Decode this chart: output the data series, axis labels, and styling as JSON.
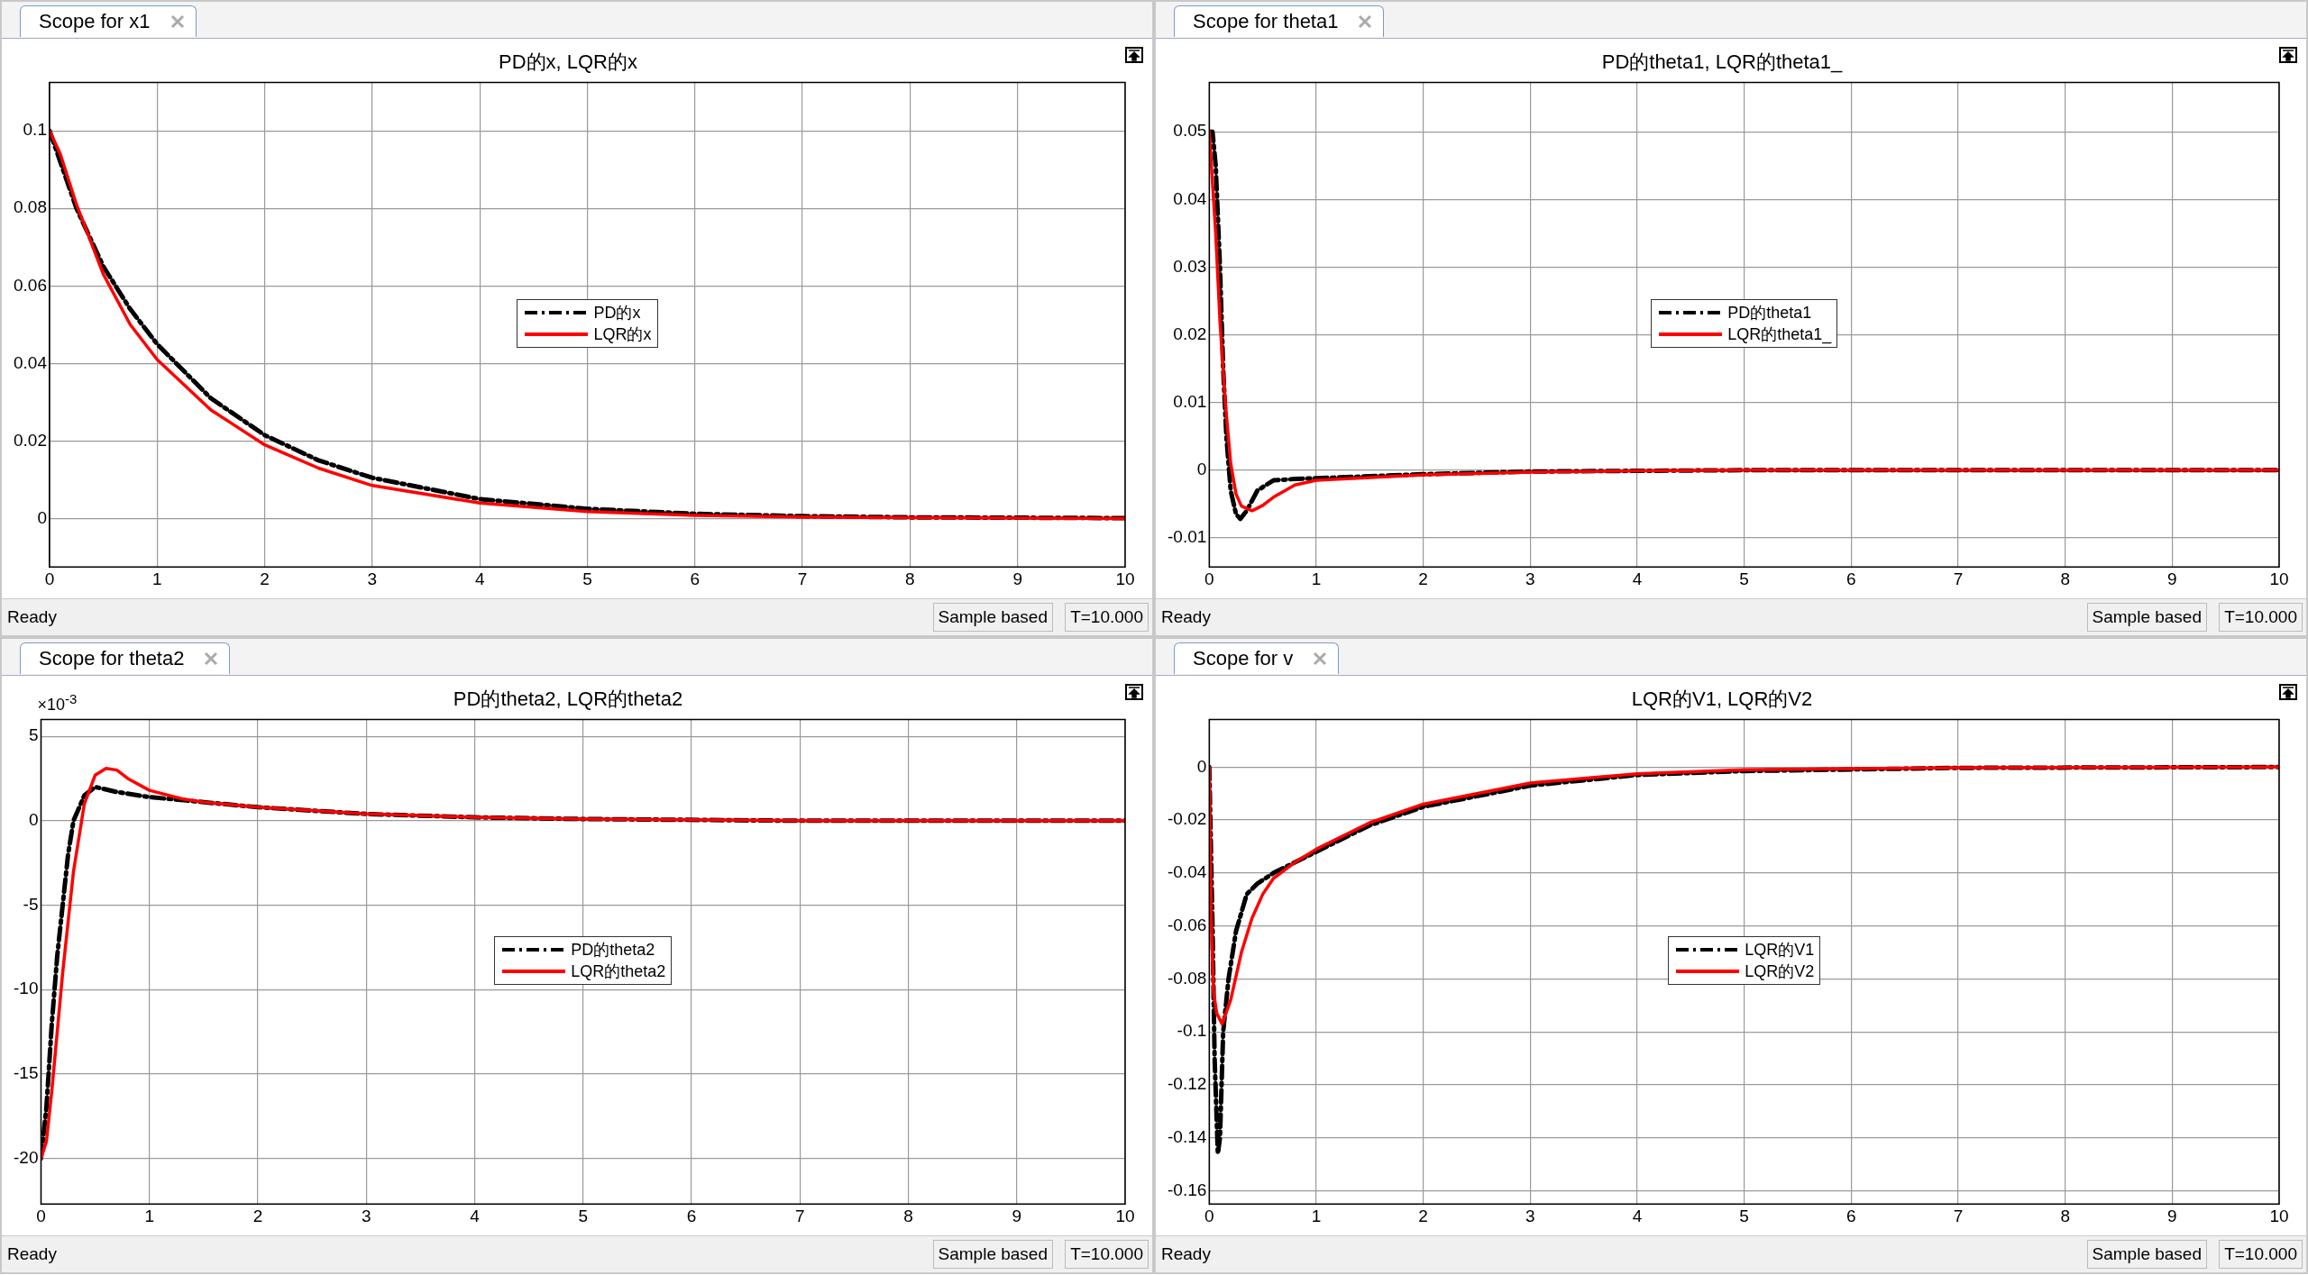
{
  "chart_data": [
    {
      "type": "line",
      "title": "PD的x, LQR的x",
      "annotations": [
        "Scope for x1",
        "Ready",
        "Sample based",
        "T=10.000"
      ],
      "xlim": [
        0,
        10
      ],
      "xticks": [
        0,
        1,
        2,
        3,
        4,
        5,
        6,
        7,
        8,
        9,
        10
      ],
      "ylim": [
        -0.0125,
        0.1125
      ],
      "yticks": [
        0,
        0.02,
        0.04,
        0.06,
        0.08,
        0.1
      ],
      "grid": true,
      "legend": "center",
      "marker": "none",
      "series": [
        {
          "name": "PD的x",
          "color": "#000000",
          "line_style": "dashed",
          "x": [
            0,
            0.1,
            0.25,
            0.5,
            0.75,
            1,
            1.5,
            2,
            2.5,
            3,
            4,
            5,
            6,
            7,
            8,
            10
          ],
          "values": [
            0.1,
            0.092,
            0.08,
            0.065,
            0.054,
            0.045,
            0.031,
            0.0215,
            0.015,
            0.0105,
            0.005,
            0.0025,
            0.0012,
            0.0006,
            0.0003,
            0.0001
          ]
        },
        {
          "name": "LQR的x",
          "color": "#ff0000",
          "line_style": "solid",
          "x": [
            0,
            0.1,
            0.25,
            0.5,
            0.75,
            1,
            1.5,
            2,
            2.5,
            3,
            4,
            5,
            6,
            7,
            8,
            10
          ],
          "values": [
            0.1,
            0.094,
            0.081,
            0.063,
            0.05,
            0.041,
            0.028,
            0.019,
            0.013,
            0.0085,
            0.004,
            0.0018,
            0.0008,
            0.0004,
            0.0002,
            0
          ]
        }
      ]
    },
    {
      "type": "line",
      "title": "PD的theta1, LQR的theta1_",
      "annotations": [
        "Scope for theta1",
        "Ready",
        "Sample based",
        "T=10.000"
      ],
      "xlim": [
        0,
        10
      ],
      "xticks": [
        0,
        1,
        2,
        3,
        4,
        5,
        6,
        7,
        8,
        9,
        10
      ],
      "ylim": [
        -0.0143,
        0.0573
      ],
      "yticks": [
        -0.01,
        0,
        0.01,
        0.02,
        0.03,
        0.04,
        0.05
      ],
      "grid": true,
      "legend": "center",
      "marker": "none",
      "series": [
        {
          "name": "PD的theta1",
          "color": "#000000",
          "line_style": "dashed",
          "x": [
            0,
            0.03,
            0.06,
            0.1,
            0.13,
            0.16,
            0.2,
            0.25,
            0.29,
            0.35,
            0.45,
            0.6,
            0.8,
            1,
            2,
            3,
            5,
            10
          ],
          "values": [
            0.05,
            0.05,
            0.045,
            0.03,
            0.015,
            0.005,
            -0.003,
            -0.0065,
            -0.0072,
            -0.006,
            -0.003,
            -0.0015,
            -0.0013,
            -0.0012,
            -0.0006,
            -0.0002,
            0,
            0
          ]
        },
        {
          "name": "LQR的theta1_",
          "color": "#ff0000",
          "line_style": "solid",
          "x": [
            0,
            0.02,
            0.06,
            0.1,
            0.15,
            0.2,
            0.25,
            0.3,
            0.4,
            0.5,
            0.6,
            0.8,
            1,
            1.5,
            2,
            3,
            4,
            5,
            10
          ],
          "values": [
            0.05,
            0.045,
            0.035,
            0.022,
            0.01,
            0.001,
            -0.0035,
            -0.0053,
            -0.006,
            -0.0052,
            -0.004,
            -0.0022,
            -0.0015,
            -0.0011,
            -0.0007,
            -0.0003,
            -0.0001,
            0,
            0
          ]
        }
      ]
    },
    {
      "type": "line",
      "title": "PD的theta2, LQR的theta2",
      "annotations": [
        "Scope for theta2",
        "Ready",
        "Sample based",
        "T=10.000",
        "×10$^{-3}$"
      ],
      "xlim": [
        0,
        10
      ],
      "xticks": [
        0,
        1,
        2,
        3,
        4,
        5,
        6,
        7,
        8,
        9,
        10
      ],
      "ylim": [
        -22.7,
        6
      ],
      "yticks": [
        -20,
        -15,
        -10,
        -5,
        0,
        5
      ],
      "grid": true,
      "legend": "center",
      "marker": "none",
      "series": [
        {
          "name": "PD的theta2",
          "color": "#000000",
          "line_style": "dashed",
          "x": [
            0,
            0.05,
            0.1,
            0.15,
            0.2,
            0.25,
            0.3,
            0.4,
            0.5,
            0.7,
            1,
            1.5,
            2,
            3,
            4,
            5,
            7,
            10
          ],
          "values": [
            -20,
            -17,
            -12,
            -8,
            -5,
            -2,
            0,
            1.5,
            2,
            1.7,
            1.4,
            1.1,
            0.8,
            0.4,
            0.2,
            0.1,
            0,
            0
          ]
        },
        {
          "name": "LQR的theta2",
          "color": "#ff0000",
          "line_style": "solid",
          "x": [
            0,
            0.05,
            0.1,
            0.2,
            0.3,
            0.4,
            0.5,
            0.6,
            0.7,
            0.8,
            1,
            1.3,
            1.5,
            2,
            3,
            4,
            5,
            7,
            10
          ],
          "values": [
            -20,
            -19,
            -16,
            -9,
            -3,
            1,
            2.7,
            3.1,
            3,
            2.5,
            1.8,
            1.3,
            1.1,
            0.8,
            0.4,
            0.2,
            0.1,
            0,
            0
          ]
        }
      ]
    },
    {
      "type": "line",
      "title": "LQR的V1, LQR的V2",
      "annotations": [
        "Scope for v",
        "Ready",
        "Sample based",
        "T=10.000"
      ],
      "xlim": [
        0,
        10
      ],
      "xticks": [
        0,
        1,
        2,
        3,
        4,
        5,
        6,
        7,
        8,
        9,
        10
      ],
      "ylim": [
        -0.165,
        0.018
      ],
      "yticks": [
        -0.16,
        -0.14,
        -0.12,
        -0.1,
        -0.08,
        -0.06,
        -0.04,
        -0.02,
        0
      ],
      "grid": true,
      "legend": "center",
      "marker": "none",
      "series": [
        {
          "name": "LQR的V1",
          "color": "#000000",
          "line_style": "dashed",
          "x": [
            0,
            0.03,
            0.05,
            0.08,
            0.1,
            0.13,
            0.18,
            0.25,
            0.35,
            0.45,
            0.6,
            0.8,
            1,
            1.5,
            2,
            3,
            4,
            5,
            7,
            10
          ],
          "values": [
            0,
            -0.06,
            -0.11,
            -0.146,
            -0.14,
            -0.1,
            -0.08,
            -0.062,
            -0.048,
            -0.044,
            -0.04,
            -0.036,
            -0.032,
            -0.022,
            -0.015,
            -0.007,
            -0.003,
            -0.0015,
            -0.0003,
            0
          ]
        },
        {
          "name": "LQR的V2",
          "color": "#ff0000",
          "line_style": "solid",
          "x": [
            0,
            0.02,
            0.04,
            0.07,
            0.12,
            0.2,
            0.3,
            0.4,
            0.5,
            0.6,
            0.8,
            1,
            1.5,
            2,
            3,
            4,
            5,
            7,
            10
          ],
          "values": [
            0,
            -0.06,
            -0.085,
            -0.093,
            -0.097,
            -0.088,
            -0.07,
            -0.057,
            -0.048,
            -0.042,
            -0.036,
            -0.031,
            -0.021,
            -0.014,
            -0.006,
            -0.0025,
            -0.001,
            -0.0002,
            0
          ]
        }
      ]
    }
  ]
}
